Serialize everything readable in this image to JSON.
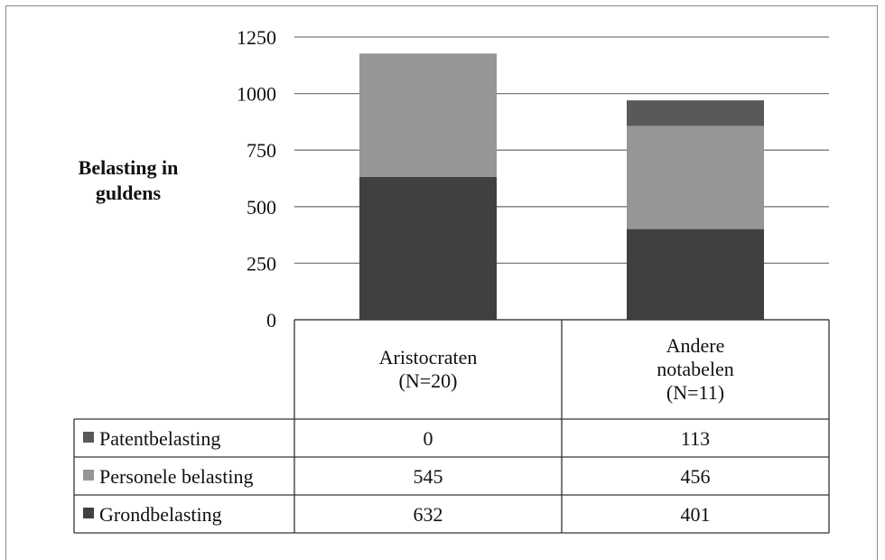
{
  "chart_data": {
    "type": "bar",
    "stacked": true,
    "ylabel": [
      "Belasting in",
      "guldens"
    ],
    "ylim": [
      0,
      1250
    ],
    "yticks": [
      "0",
      "250",
      "500",
      "750",
      "1000",
      "1250"
    ],
    "categories": [
      [
        "Aristocraten",
        "(N=20)"
      ],
      [
        "Andere",
        "notabelen",
        "(N=11)"
      ]
    ],
    "series": [
      {
        "name": "Grondbelasting",
        "values": [
          632,
          401
        ],
        "color": "#404040"
      },
      {
        "name": "Personele belasting",
        "values": [
          545,
          456
        ],
        "color": "#969696"
      },
      {
        "name": "Patentbelasting",
        "values": [
          0,
          113
        ],
        "color": "#595959"
      }
    ],
    "table_rows": [
      {
        "name": "Patentbelasting",
        "values": [
          "0",
          "113"
        ],
        "color": "#595959"
      },
      {
        "name": "Personele belasting",
        "values": [
          "545",
          "456"
        ],
        "color": "#969696"
      },
      {
        "name": "Grondbelasting",
        "values": [
          "632",
          "401"
        ],
        "color": "#404040"
      }
    ],
    "grid": true,
    "legend": "data-table"
  }
}
